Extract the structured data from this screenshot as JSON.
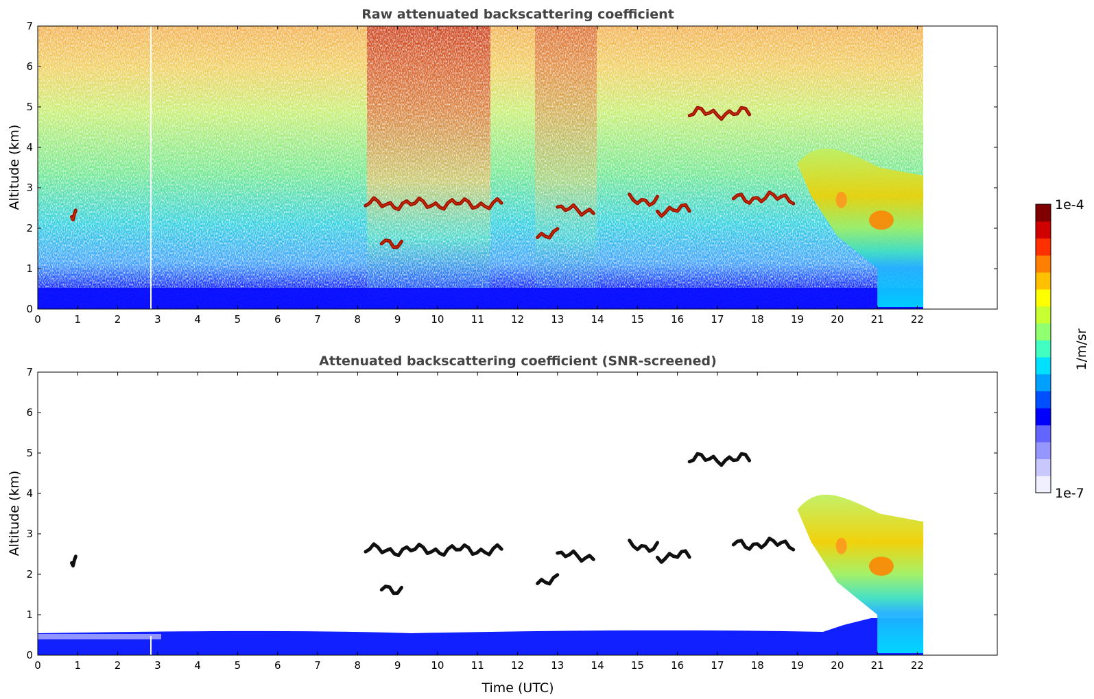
{
  "chart_data": [
    {
      "type": "heatmap",
      "title": "Raw attenuated backscattering coefficient",
      "xlabel": "",
      "ylabel": "Altitude (km)",
      "xlim": [
        0,
        24
      ],
      "ylim": [
        0,
        7
      ],
      "x_ticks": [
        0,
        1,
        2,
        3,
        4,
        5,
        6,
        7,
        8,
        9,
        10,
        11,
        12,
        13,
        14,
        15,
        16,
        17,
        18,
        19,
        20,
        21,
        22
      ],
      "y_ticks": [
        0,
        1,
        2,
        3,
        4,
        5,
        6,
        7
      ],
      "data_end_time": 22.15,
      "background_noise_color_by_altitude": "blue below 0.5 km, cyan/green mid, yellow-orange above 4 km",
      "cloud_layers": [
        {
          "t0": 0.85,
          "t1": 0.95,
          "alt": 2.35,
          "value": "1e-4"
        },
        {
          "t0": 8.2,
          "t1": 11.6,
          "alt": 2.6,
          "value": "1e-4"
        },
        {
          "t0": 8.6,
          "t1": 9.1,
          "alt": 1.65,
          "value": "1e-4"
        },
        {
          "t0": 12.5,
          "t1": 13.0,
          "alt": 1.85,
          "value": "1e-4"
        },
        {
          "t0": 13.0,
          "t1": 13.9,
          "alt": 2.45,
          "value": "1e-4"
        },
        {
          "t0": 14.8,
          "t1": 15.5,
          "alt": 2.7,
          "value": "1e-4"
        },
        {
          "t0": 15.5,
          "t1": 16.3,
          "alt": 2.45,
          "value": "1e-4"
        },
        {
          "t0": 16.3,
          "t1": 17.8,
          "alt": 4.85,
          "value": "1e-4"
        },
        {
          "t0": 17.4,
          "t1": 18.9,
          "alt": 2.75,
          "value": "1e-4"
        },
        {
          "t0": 19.0,
          "t1": 22.15,
          "alt": 2.5,
          "value": "5e-6",
          "note": "extended yellow-green precipitating cloud"
        }
      ]
    },
    {
      "type": "heatmap",
      "title": "Attenuated backscattering coefficient (SNR-screened)",
      "xlabel": "Time (UTC)",
      "ylabel": "Altitude (km)",
      "xlim": [
        0,
        24
      ],
      "ylim": [
        0,
        7
      ],
      "x_ticks": [
        0,
        1,
        2,
        3,
        4,
        5,
        6,
        7,
        8,
        9,
        10,
        11,
        12,
        13,
        14,
        15,
        16,
        17,
        18,
        19,
        20,
        21,
        22
      ],
      "y_ticks": [
        0,
        1,
        2,
        3,
        4,
        5,
        6,
        7
      ],
      "data_end_time": 22.15,
      "boundary_layer_top_km": 0.45
    }
  ],
  "colorbar": {
    "label": "1/m/sr",
    "min_label": "1e-7",
    "max_label": "1e-4",
    "scale": "log",
    "colors": [
      "#f0f0ff",
      "#c8c8ff",
      "#9696ff",
      "#6464ff",
      "#0000ff",
      "#0050ff",
      "#00a0ff",
      "#00e0ff",
      "#40ffc0",
      "#90ff70",
      "#c8ff30",
      "#ffff00",
      "#ffc000",
      "#ff8000",
      "#ff3000",
      "#d00000",
      "#800000"
    ]
  }
}
